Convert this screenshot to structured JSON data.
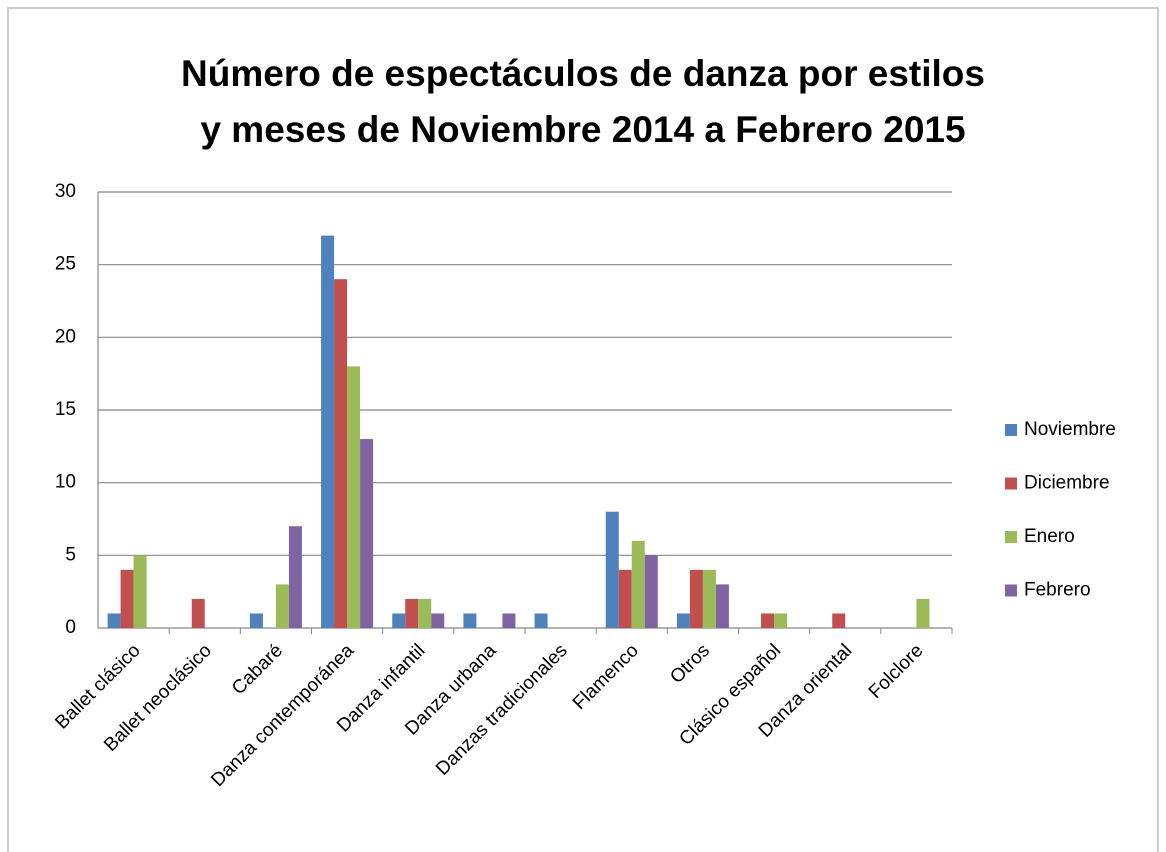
{
  "chart_data": {
    "type": "bar",
    "title": [
      "Número de espectáculos de danza por estilos",
      "y meses de Noviembre 2014 a Febrero 2015"
    ],
    "categories": [
      "Ballet clásico",
      "Ballet neoclásico",
      "Cabaré",
      "Danza contemporánea",
      "Danza infantil",
      "Danza urbana",
      "Danzas tradicionales",
      "Flamenco",
      "Otros",
      "Clásico español",
      "Danza oriental",
      "Folclore"
    ],
    "series": [
      {
        "name": "Noviembre",
        "color": "#4f81bd",
        "values": [
          1,
          0,
          1,
          27,
          1,
          1,
          1,
          8,
          1,
          0,
          0,
          0
        ]
      },
      {
        "name": "Diciembre",
        "color": "#c0504d",
        "values": [
          4,
          2,
          0,
          24,
          2,
          0,
          0,
          4,
          4,
          1,
          1,
          0
        ]
      },
      {
        "name": "Enero",
        "color": "#9bbb59",
        "values": [
          5,
          0,
          3,
          18,
          2,
          0,
          0,
          6,
          4,
          1,
          0,
          2
        ]
      },
      {
        "name": "Febrero",
        "color": "#8064a2",
        "values": [
          0,
          0,
          7,
          13,
          1,
          1,
          0,
          5,
          3,
          0,
          0,
          0
        ]
      }
    ],
    "ylim": [
      0,
      30
    ],
    "yticks": [
      0,
      5,
      10,
      15,
      20,
      25,
      30
    ],
    "grid": true,
    "legend": "right"
  }
}
